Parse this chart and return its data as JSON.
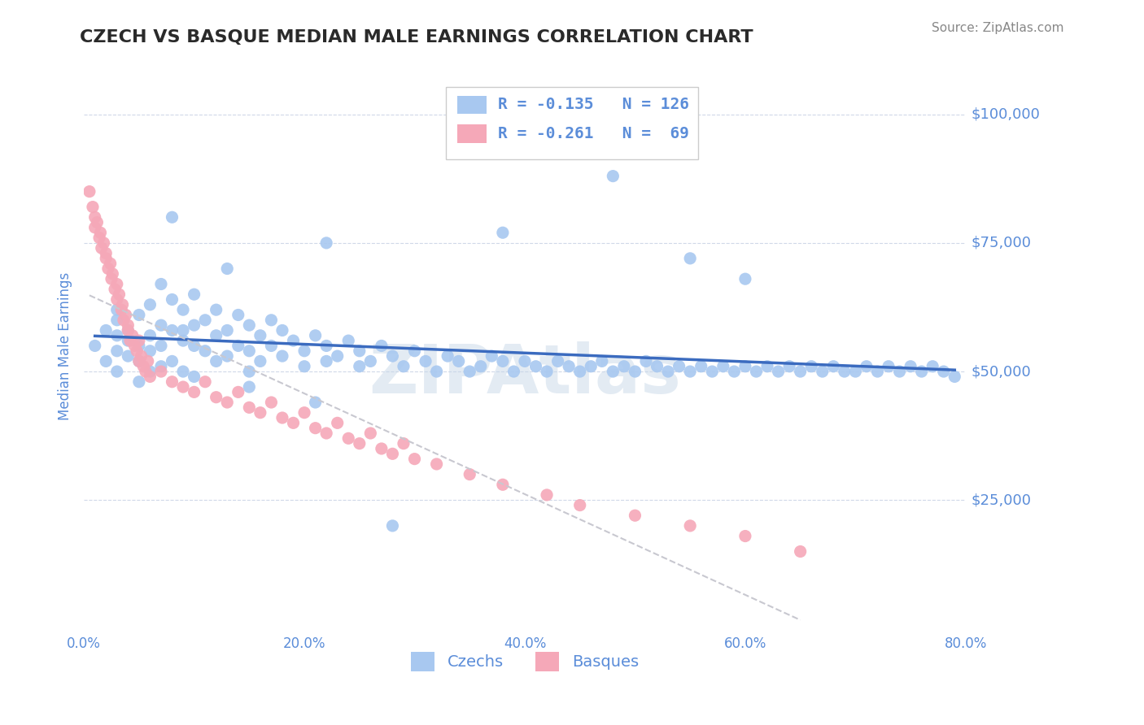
{
  "title": "CZECH VS BASQUE MEDIAN MALE EARNINGS CORRELATION CHART",
  "source_text": "Source: ZipAtlas.com",
  "xlabel": "",
  "ylabel": "Median Male Earnings",
  "xlim": [
    0.0,
    0.8
  ],
  "ylim": [
    0,
    110000
  ],
  "yticks": [
    0,
    25000,
    50000,
    75000,
    100000
  ],
  "ytick_labels": [
    "",
    "$25,000",
    "$50,000",
    "$75,000",
    "$100,000"
  ],
  "xtick_labels": [
    "0.0%",
    "20.0%",
    "40.0%",
    "60.0%",
    "80.0%"
  ],
  "xticks": [
    0.0,
    0.2,
    0.4,
    0.6,
    0.8
  ],
  "czech_color": "#a8c8f0",
  "basque_color": "#f5a8b8",
  "trend_czech_color": "#3b6bbf",
  "trend_basque_color": "#c8c8d0",
  "legend_r_czech": "R = -0.135",
  "legend_n_czech": "N = 126",
  "legend_r_basque": "R = -0.261",
  "legend_n_basque": "N =  69",
  "watermark": "ZIPAtlas",
  "watermark_color": "#c8d8e8",
  "label_color": "#5b8dd9",
  "background_color": "#ffffff",
  "grid_color": "#d0d8e8",
  "czech_x": [
    0.01,
    0.02,
    0.02,
    0.03,
    0.03,
    0.03,
    0.03,
    0.04,
    0.04,
    0.04,
    0.05,
    0.05,
    0.05,
    0.05,
    0.06,
    0.06,
    0.06,
    0.06,
    0.07,
    0.07,
    0.07,
    0.08,
    0.08,
    0.08,
    0.09,
    0.09,
    0.09,
    0.1,
    0.1,
    0.1,
    0.1,
    0.11,
    0.11,
    0.12,
    0.12,
    0.12,
    0.13,
    0.13,
    0.14,
    0.14,
    0.15,
    0.15,
    0.15,
    0.16,
    0.16,
    0.17,
    0.17,
    0.18,
    0.18,
    0.19,
    0.2,
    0.2,
    0.21,
    0.22,
    0.22,
    0.23,
    0.24,
    0.25,
    0.25,
    0.26,
    0.27,
    0.28,
    0.29,
    0.3,
    0.31,
    0.32,
    0.33,
    0.34,
    0.35,
    0.36,
    0.37,
    0.38,
    0.39,
    0.4,
    0.41,
    0.42,
    0.43,
    0.44,
    0.45,
    0.46,
    0.47,
    0.48,
    0.49,
    0.5,
    0.51,
    0.52,
    0.53,
    0.54,
    0.55,
    0.56,
    0.57,
    0.58,
    0.59,
    0.6,
    0.61,
    0.62,
    0.63,
    0.64,
    0.65,
    0.66,
    0.67,
    0.68,
    0.69,
    0.7,
    0.71,
    0.72,
    0.73,
    0.74,
    0.75,
    0.76,
    0.77,
    0.78,
    0.79,
    0.22,
    0.13,
    0.08,
    0.48,
    0.38,
    0.55,
    0.6,
    0.07,
    0.03,
    0.09,
    0.15,
    0.21,
    0.28
  ],
  "czech_y": [
    55000,
    58000,
    52000,
    60000,
    54000,
    57000,
    50000,
    56000,
    53000,
    58000,
    55000,
    61000,
    52000,
    48000,
    63000,
    57000,
    54000,
    50000,
    59000,
    55000,
    51000,
    64000,
    58000,
    52000,
    62000,
    56000,
    50000,
    65000,
    59000,
    55000,
    49000,
    60000,
    54000,
    62000,
    57000,
    52000,
    58000,
    53000,
    61000,
    55000,
    59000,
    54000,
    50000,
    57000,
    52000,
    60000,
    55000,
    58000,
    53000,
    56000,
    54000,
    51000,
    57000,
    55000,
    52000,
    53000,
    56000,
    54000,
    51000,
    52000,
    55000,
    53000,
    51000,
    54000,
    52000,
    50000,
    53000,
    52000,
    50000,
    51000,
    53000,
    52000,
    50000,
    52000,
    51000,
    50000,
    52000,
    51000,
    50000,
    51000,
    52000,
    50000,
    51000,
    50000,
    52000,
    51000,
    50000,
    51000,
    50000,
    51000,
    50000,
    51000,
    50000,
    51000,
    50000,
    51000,
    50000,
    51000,
    50000,
    51000,
    50000,
    51000,
    50000,
    50000,
    51000,
    50000,
    51000,
    50000,
    51000,
    50000,
    51000,
    50000,
    49000,
    75000,
    70000,
    80000,
    88000,
    77000,
    72000,
    68000,
    67000,
    62000,
    58000,
    47000,
    44000,
    20000
  ],
  "basque_x": [
    0.005,
    0.008,
    0.01,
    0.01,
    0.012,
    0.014,
    0.015,
    0.016,
    0.018,
    0.02,
    0.02,
    0.022,
    0.024,
    0.025,
    0.026,
    0.028,
    0.03,
    0.03,
    0.032,
    0.034,
    0.035,
    0.036,
    0.038,
    0.04,
    0.04,
    0.042,
    0.044,
    0.046,
    0.048,
    0.05,
    0.05,
    0.052,
    0.054,
    0.056,
    0.058,
    0.06,
    0.07,
    0.08,
    0.09,
    0.1,
    0.11,
    0.12,
    0.13,
    0.14,
    0.15,
    0.16,
    0.17,
    0.18,
    0.19,
    0.2,
    0.21,
    0.22,
    0.23,
    0.24,
    0.25,
    0.26,
    0.27,
    0.28,
    0.29,
    0.3,
    0.32,
    0.35,
    0.38,
    0.42,
    0.45,
    0.5,
    0.55,
    0.6,
    0.65
  ],
  "basque_y": [
    85000,
    82000,
    80000,
    78000,
    79000,
    76000,
    77000,
    74000,
    75000,
    72000,
    73000,
    70000,
    71000,
    68000,
    69000,
    66000,
    67000,
    64000,
    65000,
    62000,
    63000,
    60000,
    61000,
    58000,
    59000,
    56000,
    57000,
    55000,
    54000,
    56000,
    52000,
    53000,
    51000,
    50000,
    52000,
    49000,
    50000,
    48000,
    47000,
    46000,
    48000,
    45000,
    44000,
    46000,
    43000,
    42000,
    44000,
    41000,
    40000,
    42000,
    39000,
    38000,
    40000,
    37000,
    36000,
    38000,
    35000,
    34000,
    36000,
    33000,
    32000,
    30000,
    28000,
    26000,
    24000,
    22000,
    20000,
    18000,
    15000
  ]
}
